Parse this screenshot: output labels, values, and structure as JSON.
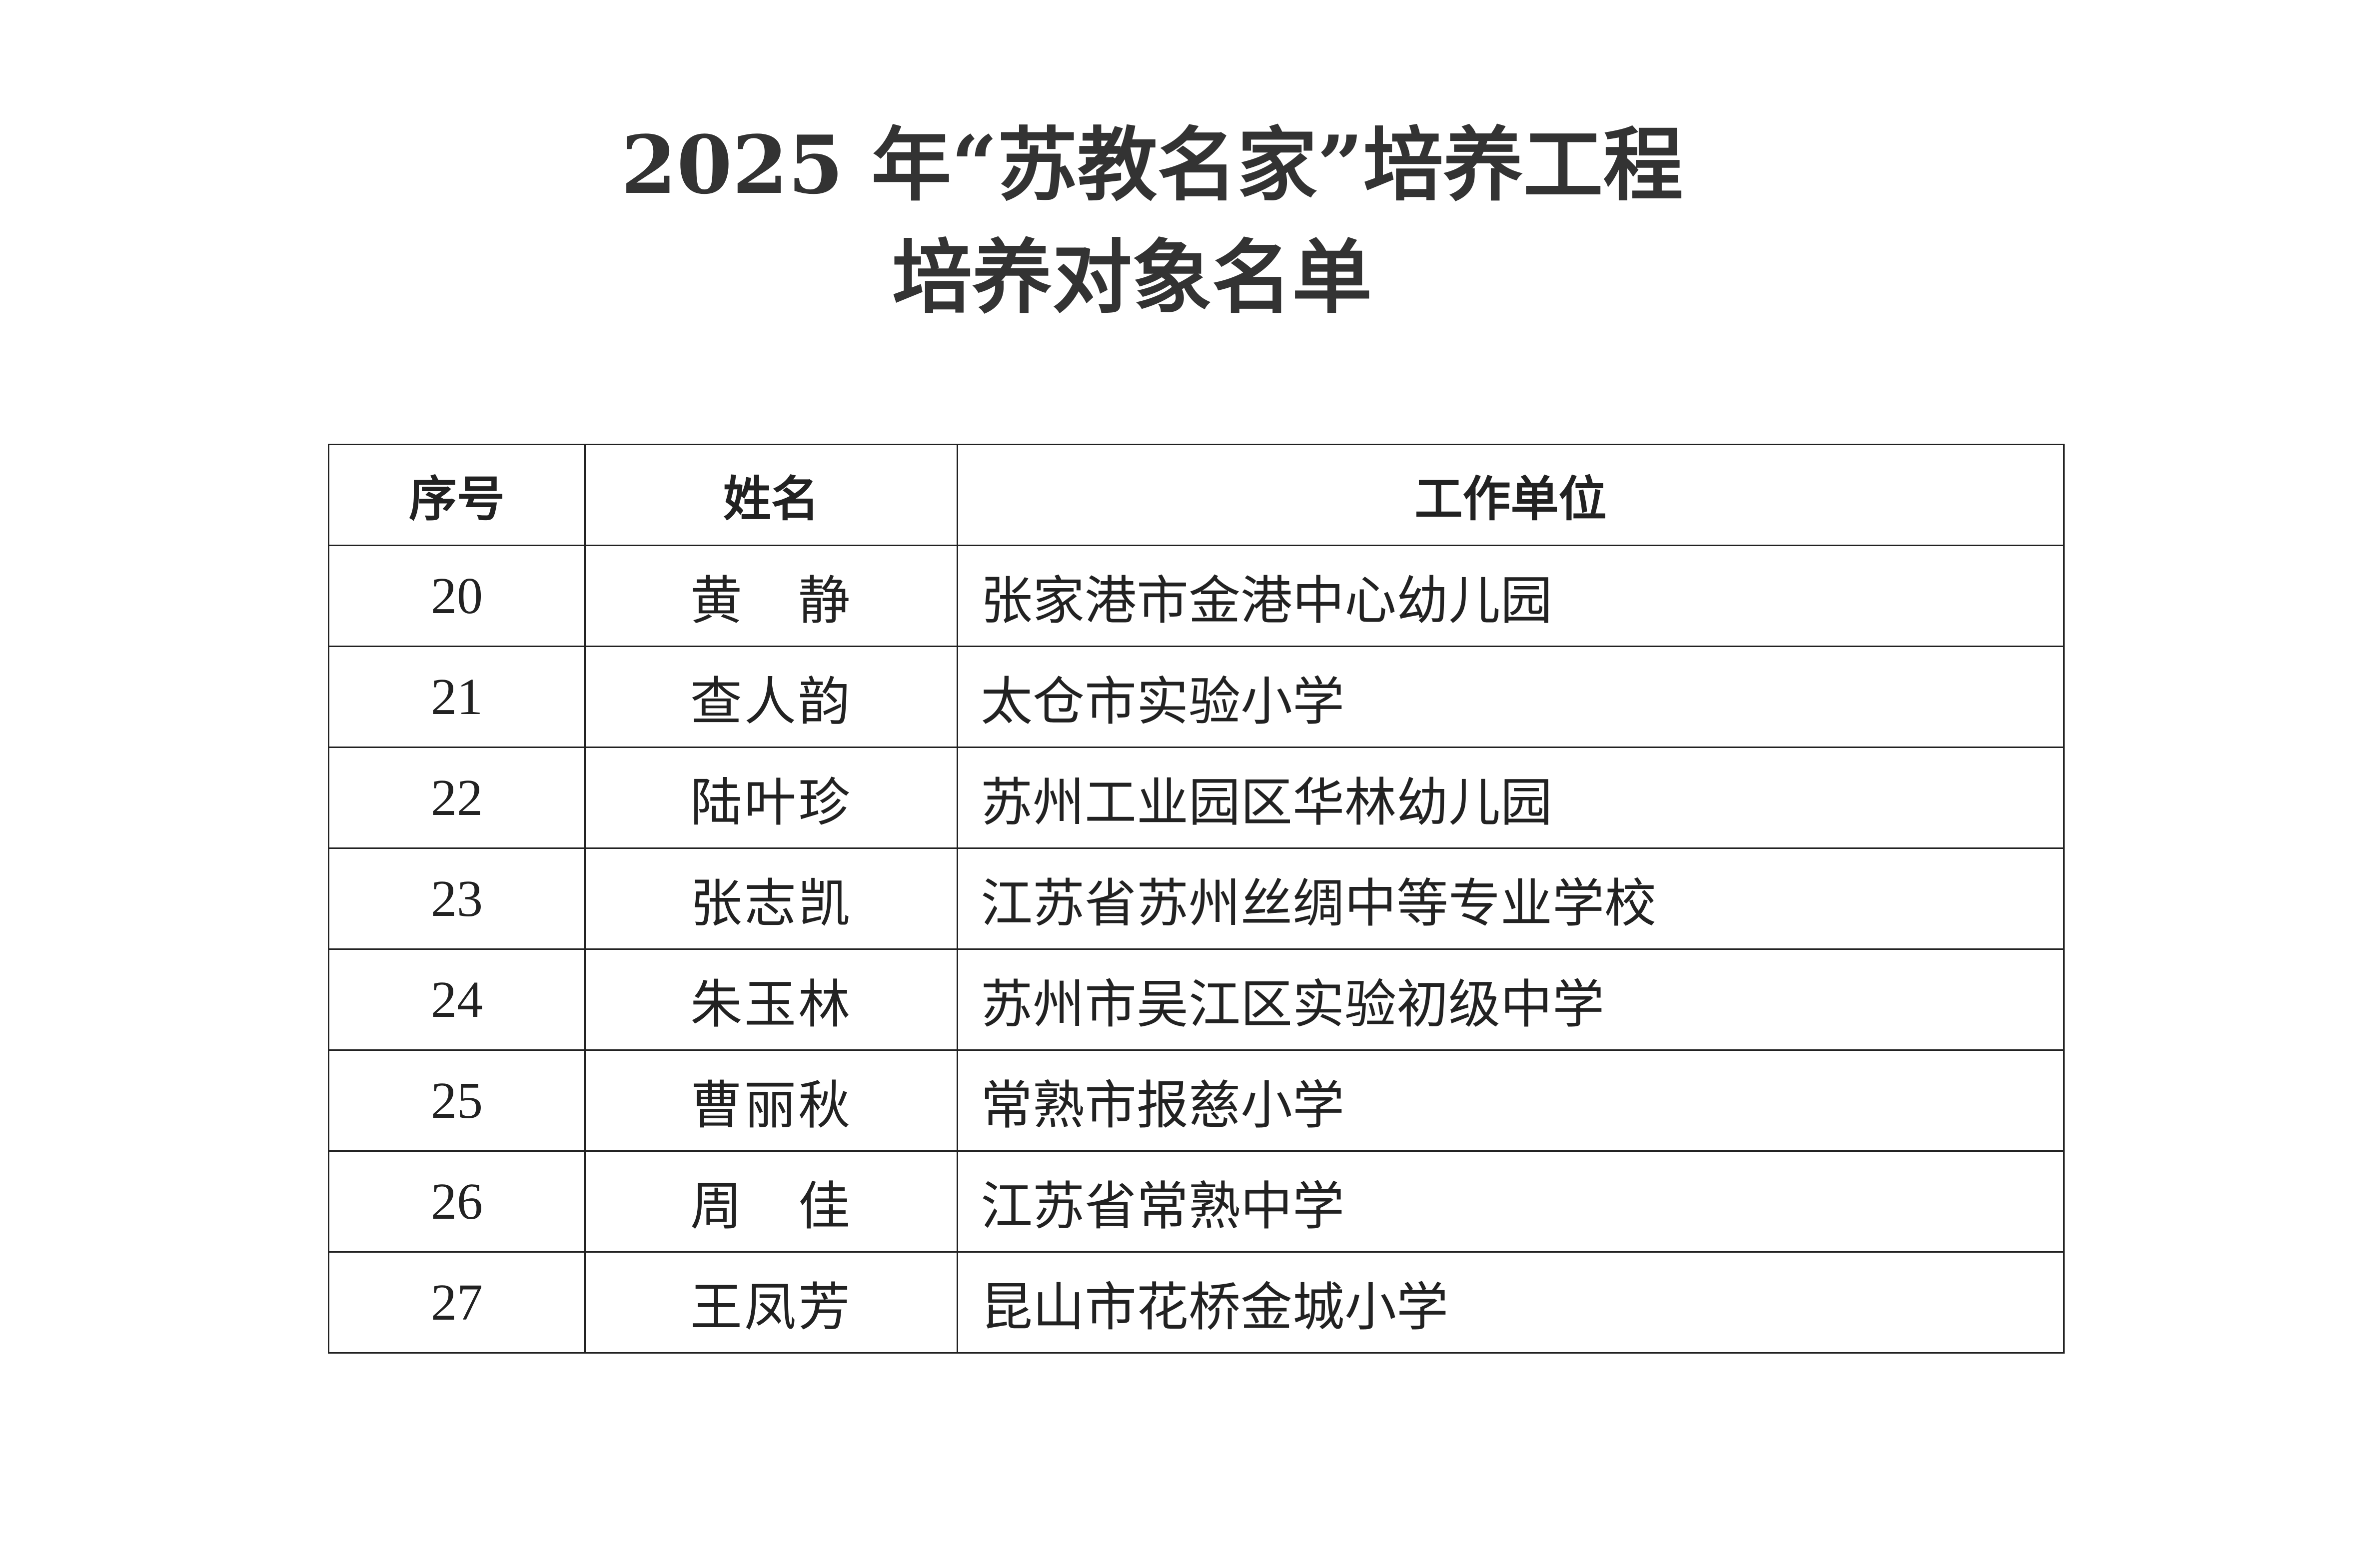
{
  "title": {
    "line1": "2025 年“苏教名家”培养工程",
    "line2": "培养对象名单"
  },
  "table": {
    "headers": [
      "序号",
      "姓名",
      "工作单位"
    ],
    "rows": [
      {
        "no": "20",
        "name": "黄　静",
        "unit": "张家港市金港中心幼儿园"
      },
      {
        "no": "21",
        "name": "查人韵",
        "unit": "太仓市实验小学"
      },
      {
        "no": "22",
        "name": "陆叶珍",
        "unit": "苏州工业园区华林幼儿园"
      },
      {
        "no": "23",
        "name": "张志凯",
        "unit": "江苏省苏州丝绸中等专业学校"
      },
      {
        "no": "24",
        "name": "朱玉林",
        "unit": "苏州市吴江区实验初级中学"
      },
      {
        "no": "25",
        "name": "曹丽秋",
        "unit": "常熟市报慈小学"
      },
      {
        "no": "26",
        "name": "周　佳",
        "unit": "江苏省常熟中学"
      },
      {
        "no": "27",
        "name": "王凤芳",
        "unit": "昆山市花桥金城小学"
      }
    ]
  }
}
